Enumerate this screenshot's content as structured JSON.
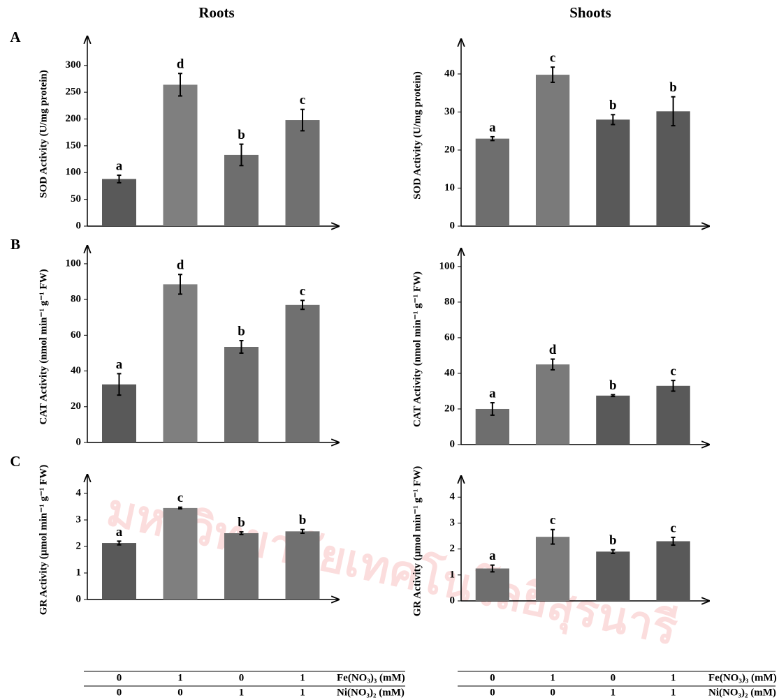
{
  "column_titles": [
    "Roots",
    "Shoots"
  ],
  "row_labels": [
    "A",
    "B",
    "C"
  ],
  "watermark": "มหาวิทยาลัยเทคโนโลยีสุรนารี",
  "treatments": [
    {
      "label": "Fe(NO₃)₃ (mM)",
      "values": [
        0,
        1,
        0,
        1
      ]
    },
    {
      "label": "Ni(NO₃)₂ (mM)",
      "values": [
        0,
        0,
        1,
        1
      ]
    }
  ],
  "chart_data": [
    {
      "type": "bar",
      "ylabel": "SOD Activity (U/mg protein)",
      "categories": [
        null,
        null,
        null,
        null
      ],
      "values": [
        88,
        264,
        133,
        198
      ],
      "errors": [
        7,
        21,
        20,
        20
      ],
      "letters": [
        "a",
        "d",
        "b",
        "c"
      ],
      "colors": [
        "#595959",
        "#7f7f7f",
        "#6e6e6e",
        "#707070"
      ],
      "ylim": [
        0,
        344
      ],
      "yticks": [
        0,
        50,
        100,
        150,
        200,
        250,
        300
      ]
    },
    {
      "type": "bar",
      "ylabel": "SOD Activity (U/mg protein)",
      "categories": [
        null,
        null,
        null,
        null
      ],
      "values": [
        23,
        39.8,
        28,
        30.2
      ],
      "errors": [
        0.5,
        2,
        1.3,
        3.8
      ],
      "letters": [
        "a",
        "c",
        "b",
        "b"
      ],
      "colors": [
        "#6e6e6e",
        "#7a7a7a",
        "#595959",
        "#595959"
      ],
      "ylim": [
        0,
        47.7
      ],
      "yticks": [
        0,
        10,
        20,
        30,
        40
      ]
    },
    {
      "type": "bar",
      "ylabel": "CAT Activity (nmol min⁻¹ g⁻¹ FW)",
      "categories": [
        null,
        null,
        null,
        null
      ],
      "values": [
        32.5,
        88.5,
        53.5,
        77
      ],
      "errors": [
        6,
        5.5,
        3.5,
        2.5
      ],
      "letters": [
        "a",
        "d",
        "b",
        "c"
      ],
      "colors": [
        "#595959",
        "#7f7f7f",
        "#6e6e6e",
        "#707070"
      ],
      "ylim": [
        0,
        107
      ],
      "yticks": [
        0,
        20,
        40,
        60,
        80,
        100
      ]
    },
    {
      "type": "bar",
      "ylabel": "CAT Activity (nmol min⁻¹ g⁻¹ FW)",
      "categories": [
        null,
        null,
        null,
        null
      ],
      "values": [
        20,
        45,
        27.5,
        33
      ],
      "errors": [
        3.5,
        3,
        0.5,
        3
      ],
      "letters": [
        "a",
        "d",
        "b",
        "c"
      ],
      "colors": [
        "#6e6e6e",
        "#7a7a7a",
        "#595959",
        "#595959"
      ],
      "ylim": [
        0,
        107
      ],
      "yticks": [
        0,
        20,
        40,
        60,
        80,
        100
      ]
    },
    {
      "type": "bar",
      "ylabel": "GR Activity (µmol min⁻¹ g⁻¹ FW)",
      "categories": [
        null,
        null,
        null,
        null
      ],
      "values": [
        2.13,
        3.45,
        2.5,
        2.57
      ],
      "errors": [
        0.07,
        0.03,
        0.05,
        0.07
      ],
      "letters": [
        "a",
        "c",
        "b",
        "b"
      ],
      "colors": [
        "#595959",
        "#7f7f7f",
        "#6e6e6e",
        "#707070"
      ],
      "ylim": [
        0,
        4.5
      ],
      "yticks": [
        0,
        1,
        2,
        3,
        4
      ]
    },
    {
      "type": "bar",
      "ylabel": "GR Activity (µmol min⁻¹ g⁻¹ FW)",
      "categories": [
        null,
        null,
        null,
        null
      ],
      "values": [
        1.25,
        2.47,
        1.9,
        2.3
      ],
      "errors": [
        0.13,
        0.28,
        0.07,
        0.15
      ],
      "letters": [
        "a",
        "c",
        "b",
        "c"
      ],
      "colors": [
        "#6e6e6e",
        "#7a7a7a",
        "#595959",
        "#595959"
      ],
      "ylim": [
        0,
        4.6
      ],
      "yticks": [
        0,
        1,
        2,
        3,
        4
      ]
    }
  ]
}
